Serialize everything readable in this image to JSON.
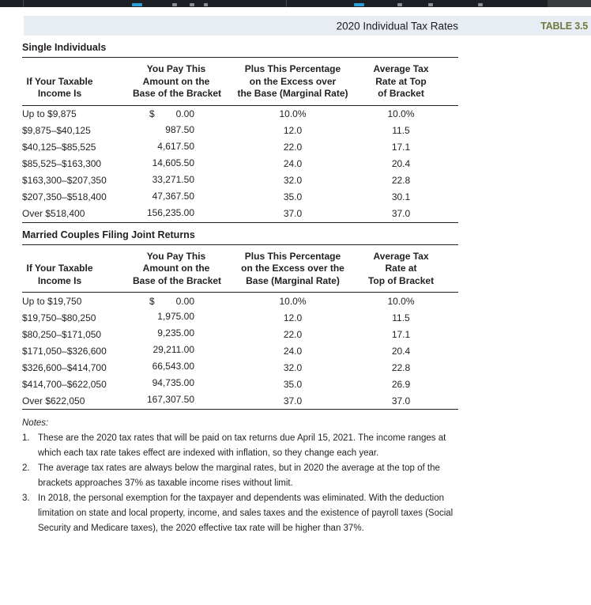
{
  "colors": {
    "band_background": "#e8edf4",
    "table_label_green": "#6e7a3e",
    "toolbar_background": "#1d2024",
    "toolbar_icon_blue": "#2b9fd8",
    "text": "#231f20"
  },
  "header": {
    "title": "2020 Individual Tax Rates",
    "table_label": "TABLE 3.5"
  },
  "tables": [
    {
      "section": "Single Individuals",
      "headers": [
        [
          "If Your Taxable",
          "Income Is"
        ],
        [
          "You Pay This",
          "Amount on the",
          "Base of the Bracket"
        ],
        [
          "Plus This Percentage",
          "on the Excess over",
          "the Base (Marginal Rate)"
        ],
        [
          "Average Tax",
          "Rate at Top",
          "of Bracket"
        ]
      ],
      "rows": [
        {
          "income": "Up to $9,875",
          "dollar": "$",
          "amount": "0.00",
          "marginal": "10.0%",
          "average": "10.0%"
        },
        {
          "income": "$9,875–$40,125",
          "dollar": "",
          "amount": "987.50",
          "marginal": "12.0",
          "average": "11.5"
        },
        {
          "income": "$40,125–$85,525",
          "dollar": "",
          "amount": "4,617.50",
          "marginal": "22.0",
          "average": "17.1"
        },
        {
          "income": "$85,525–$163,300",
          "dollar": "",
          "amount": "14,605.50",
          "marginal": "24.0",
          "average": "20.4"
        },
        {
          "income": "$163,300–$207,350",
          "dollar": "",
          "amount": "33,271.50",
          "marginal": "32.0",
          "average": "22.8"
        },
        {
          "income": "$207,350–$518,400",
          "dollar": "",
          "amount": "47,367.50",
          "marginal": "35.0",
          "average": "30.1"
        },
        {
          "income": "Over $518,400",
          "dollar": "",
          "amount": "156,235.00",
          "marginal": "37.0",
          "average": "37.0"
        }
      ]
    },
    {
      "section": "Married Couples Filing Joint Returns",
      "headers": [
        [
          "If Your Taxable",
          "Income Is"
        ],
        [
          "You Pay This",
          "Amount on the",
          "Base of the Bracket"
        ],
        [
          "Plus This Percentage",
          "on the Excess over the",
          "Base (Marginal Rate)"
        ],
        [
          "Average Tax",
          "Rate at",
          "Top of Bracket"
        ]
      ],
      "rows": [
        {
          "income": "Up to $19,750",
          "dollar": "$",
          "amount": "0.00",
          "marginal": "10.0%",
          "average": "10.0%"
        },
        {
          "income": "$19,750–$80,250",
          "dollar": "",
          "amount": "1,975.00",
          "marginal": "12.0",
          "average": "11.5"
        },
        {
          "income": "$80,250–$171,050",
          "dollar": "",
          "amount": "9,235.00",
          "marginal": "22.0",
          "average": "17.1"
        },
        {
          "income": "$171,050–$326,600",
          "dollar": "",
          "amount": "29,211.00",
          "marginal": "24.0",
          "average": "20.4"
        },
        {
          "income": "$326,600–$414,700",
          "dollar": "",
          "amount": "66,543.00",
          "marginal": "32.0",
          "average": "22.8"
        },
        {
          "income": "$414,700–$622,050",
          "dollar": "",
          "amount": "94,735.00",
          "marginal": "35.0",
          "average": "26.9"
        },
        {
          "income": "Over $622,050",
          "dollar": "",
          "amount": "167,307.50",
          "marginal": "37.0",
          "average": "37.0"
        }
      ]
    }
  ],
  "notes": {
    "label": "Notes:",
    "items": [
      "These are the 2020 tax rates that will be paid on tax returns due April 15, 2021. The income ranges at which each tax rate takes effect are indexed with inflation, so they change each year.",
      "The average tax rates are always below the marginal rates, but in 2020 the average at the top of the brackets approaches 37% as taxable income rises without limit.",
      "In 2018, the personal exemption for the taxpayer and dependents was eliminated. With the deduction limitation on state and local property, income, and sales taxes and the existence of payroll taxes (Social Security and Medicare taxes), the 2020 effective tax rate will be higher than 37%."
    ]
  }
}
